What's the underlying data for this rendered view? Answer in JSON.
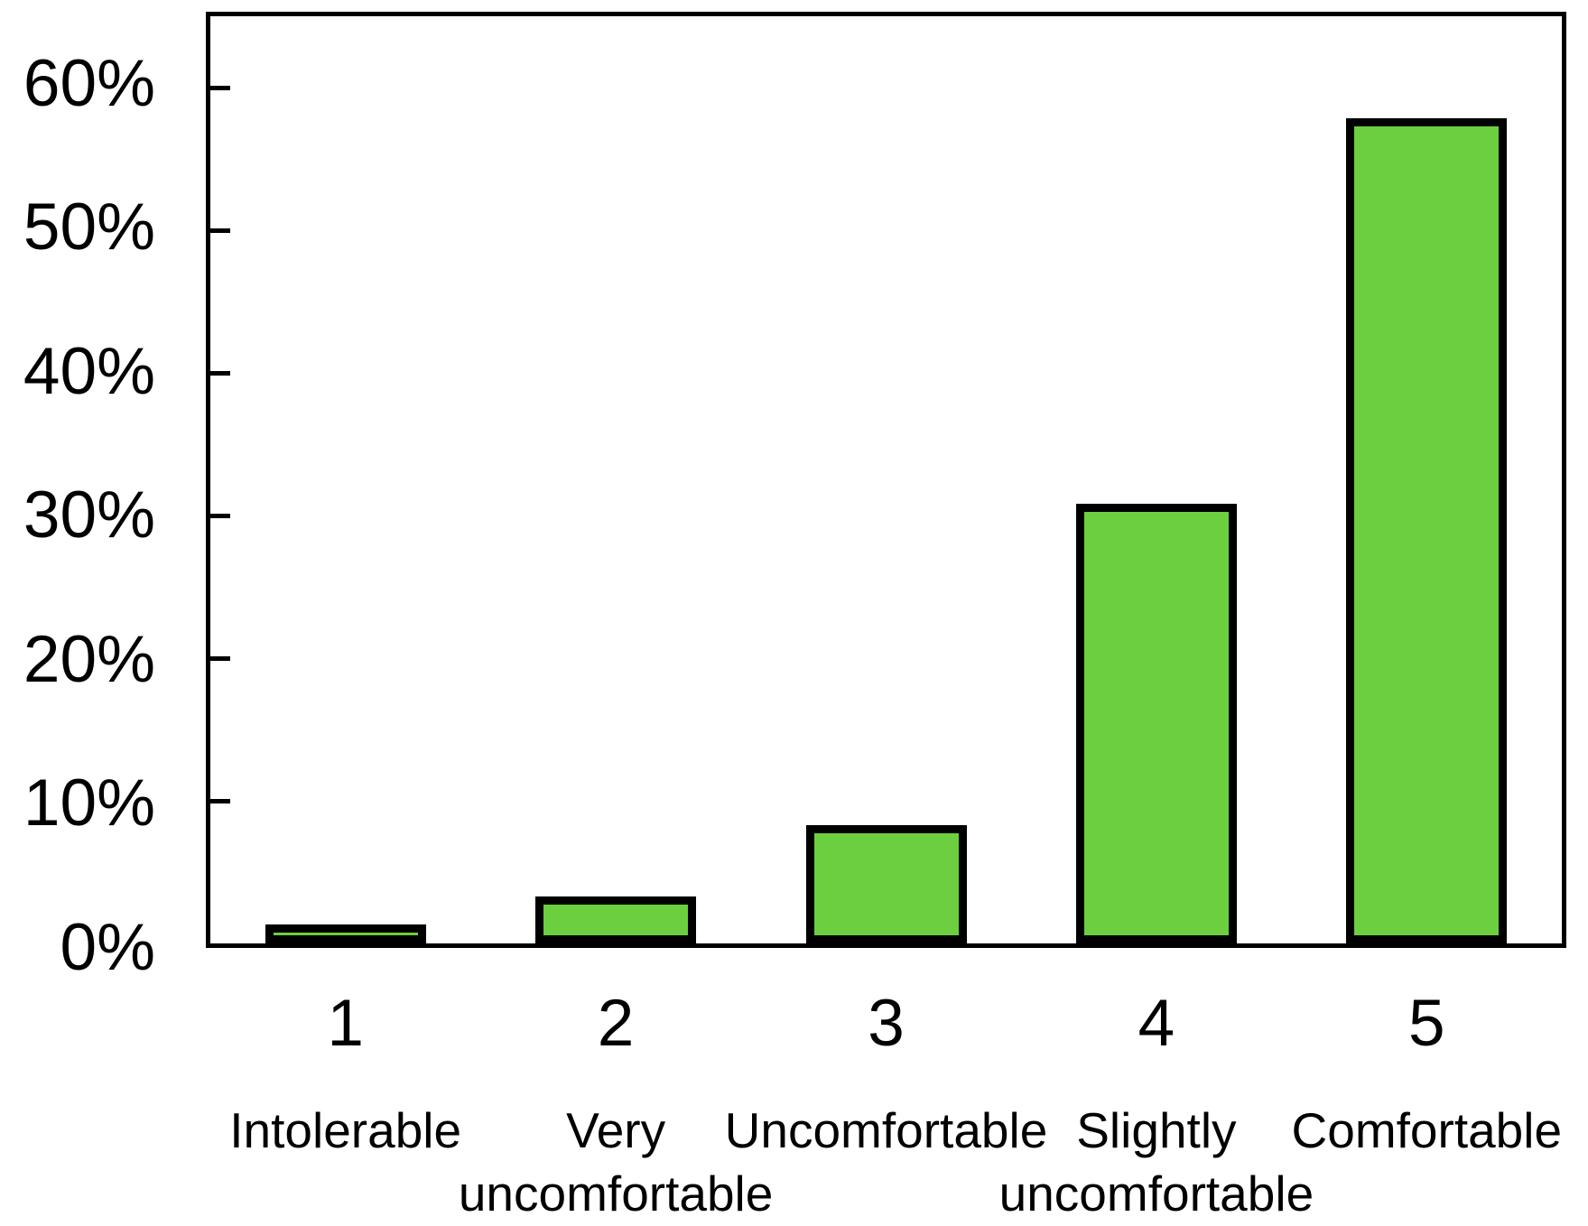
{
  "chart_data": {
    "type": "bar",
    "title": "",
    "xlabel": "",
    "ylabel": "",
    "categories": [
      "1",
      "2",
      "3",
      "4",
      "5"
    ],
    "category_labels": [
      "Intolerable",
      "Very uncomfortable",
      "Uncomfortable",
      "Slightly uncomfortable",
      "Comfortable"
    ],
    "category_label_lines": [
      [
        "Intolerable"
      ],
      [
        "Very",
        "uncomfortable"
      ],
      [
        "Uncomfortable"
      ],
      [
        "Slightly",
        "uncomfortable"
      ],
      [
        "Comfortable"
      ]
    ],
    "values": [
      1,
      3,
      8,
      30.5,
      57.5
    ],
    "unit": "%",
    "y_tick_values": [
      0,
      10,
      20,
      30,
      40,
      50,
      60
    ],
    "y_tick_labels": [
      "0%",
      "10%",
      "20%",
      "30%",
      "40%",
      "50%",
      "60%"
    ],
    "ylim": [
      0,
      65
    ],
    "grid": false,
    "legend_position": "none",
    "colors": {
      "bar_fill": "#6CCF40",
      "bar_border": "#000000",
      "axis": "#000000",
      "text": "#000000",
      "background": "#FFFFFF"
    }
  }
}
